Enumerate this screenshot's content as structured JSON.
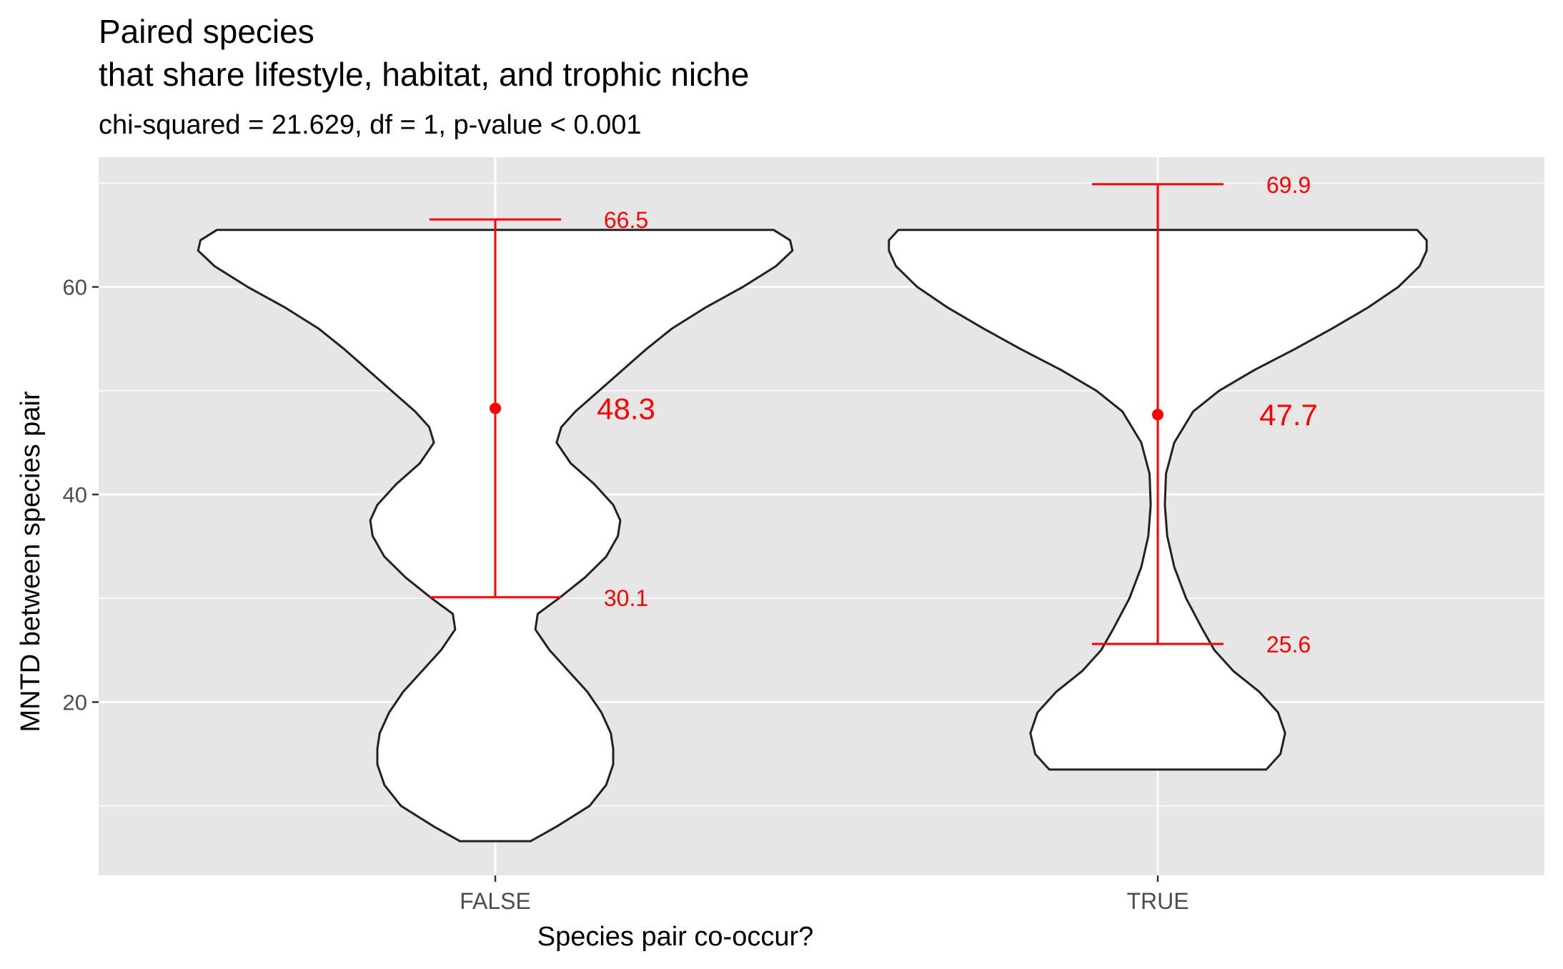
{
  "chart_data": {
    "type": "violin",
    "title": "Paired species",
    "title_line2": "that share lifestyle, habitat, and trophic niche",
    "subtitle": "chi-squared = 21.629, df = 1, p-value < 0.001",
    "xlabel": "Species pair co-occur?",
    "ylabel": "MNTD between species pair",
    "ylim": [
      3.3,
      72.5
    ],
    "y_ticks": [
      20,
      40,
      60
    ],
    "y_minor_ticks": [
      10,
      30,
      50,
      70
    ],
    "grid": true,
    "categories": [
      "FALSE",
      "TRUE"
    ],
    "summary": [
      {
        "category": "FALSE",
        "mean": 48.3,
        "upper": 66.5,
        "lower": 30.1,
        "mean_label": "48.3",
        "upper_label": "66.5",
        "lower_label": "30.1"
      },
      {
        "category": "TRUE",
        "mean": 47.7,
        "upper": 69.9,
        "lower": 25.6,
        "mean_label": "47.7",
        "upper_label": "69.9",
        "lower_label": "25.6"
      }
    ],
    "violins": [
      {
        "category": "FALSE",
        "range": [
          6.6,
          65.5
        ],
        "profile": [
          [
            6.6,
            0.15
          ],
          [
            8,
            0.26
          ],
          [
            10,
            0.4
          ],
          [
            12,
            0.47
          ],
          [
            14,
            0.5
          ],
          [
            15.5,
            0.5
          ],
          [
            17,
            0.49
          ],
          [
            19,
            0.45
          ],
          [
            21,
            0.39
          ],
          [
            23,
            0.31
          ],
          [
            25,
            0.23
          ],
          [
            27,
            0.17
          ],
          [
            28.5,
            0.18
          ],
          [
            30,
            0.27
          ],
          [
            32,
            0.38
          ],
          [
            34,
            0.47
          ],
          [
            36,
            0.52
          ],
          [
            37.5,
            0.53
          ],
          [
            39,
            0.5
          ],
          [
            41,
            0.42
          ],
          [
            43,
            0.32
          ],
          [
            45,
            0.26
          ],
          [
            46.5,
            0.28
          ],
          [
            48,
            0.34
          ],
          [
            50,
            0.44
          ],
          [
            52,
            0.54
          ],
          [
            54,
            0.64
          ],
          [
            56,
            0.75
          ],
          [
            58,
            0.89
          ],
          [
            60,
            1.05
          ],
          [
            62,
            1.19
          ],
          [
            63.5,
            1.26
          ],
          [
            64.5,
            1.25
          ],
          [
            65.5,
            1.18
          ]
        ]
      },
      {
        "category": "TRUE",
        "range": [
          13.5,
          65.5
        ],
        "profile": [
          [
            13.5,
            0.46
          ],
          [
            15,
            0.52
          ],
          [
            17,
            0.54
          ],
          [
            19,
            0.51
          ],
          [
            21,
            0.43
          ],
          [
            23,
            0.32
          ],
          [
            25,
            0.24
          ],
          [
            27,
            0.19
          ],
          [
            30,
            0.12
          ],
          [
            33,
            0.07
          ],
          [
            36,
            0.04
          ],
          [
            39,
            0.03
          ],
          [
            42,
            0.035
          ],
          [
            45,
            0.07
          ],
          [
            48,
            0.15
          ],
          [
            50,
            0.26
          ],
          [
            52,
            0.41
          ],
          [
            54,
            0.58
          ],
          [
            56,
            0.74
          ],
          [
            58,
            0.89
          ],
          [
            60,
            1.02
          ],
          [
            62,
            1.11
          ],
          [
            63.5,
            1.14
          ],
          [
            64.5,
            1.14
          ],
          [
            65.5,
            1.1
          ]
        ]
      }
    ]
  }
}
